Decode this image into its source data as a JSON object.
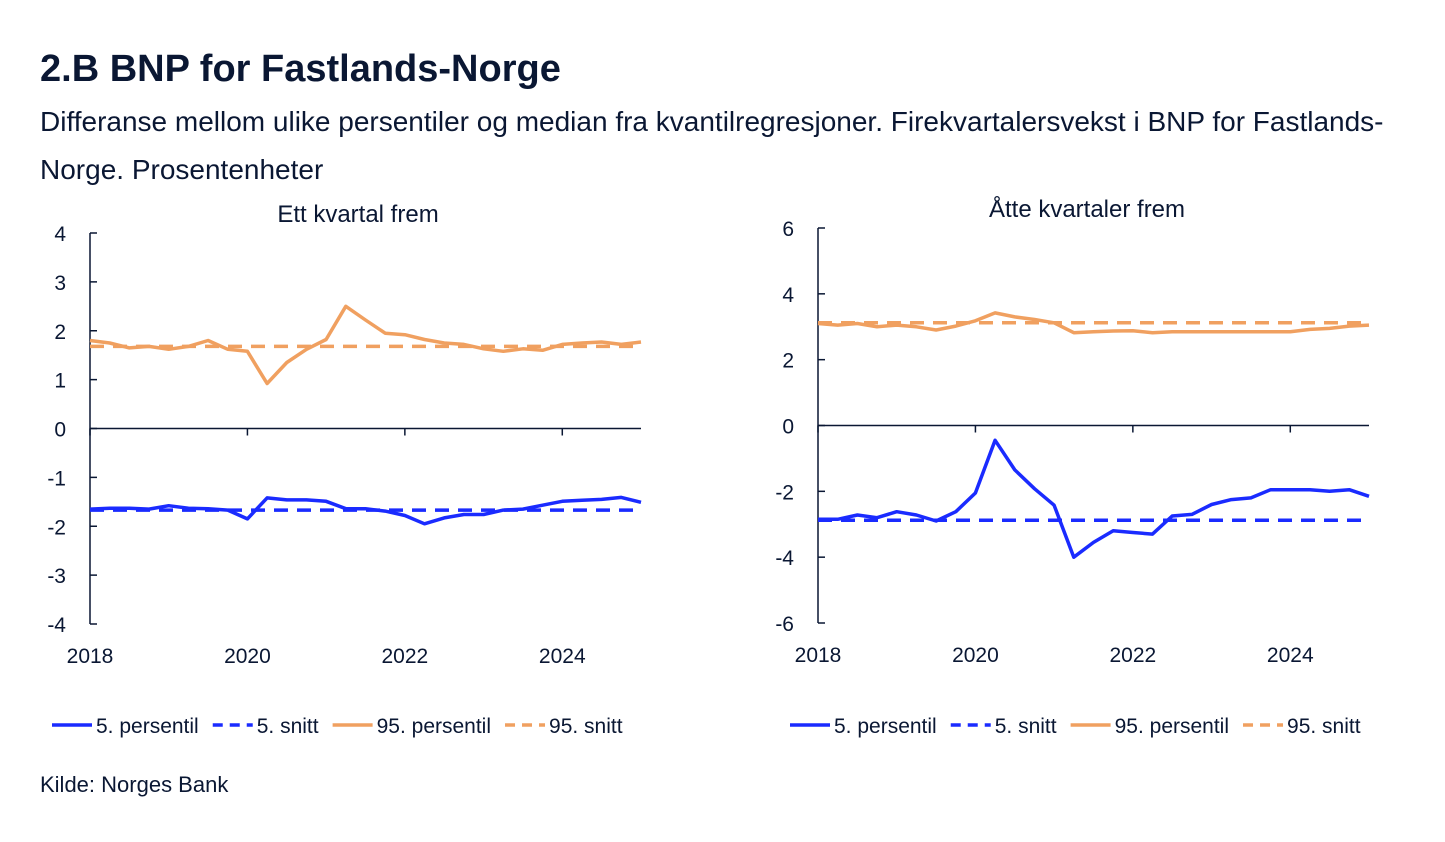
{
  "title": "2.B BNP for Fastlands-Norge",
  "subtitle": "Differanse mellom ulike persentiler og median fra kvantilregresjoner. Firekvartalersvekst i BNP for Fastlands-Norge. Prosentenheter",
  "source": "Kilde: Norges Bank",
  "colors": {
    "blue": "#1a2bff",
    "orange": "#f0a060",
    "axis": "#0a1733"
  },
  "chart_data": [
    {
      "type": "line",
      "title": "Ett kvartal frem",
      "x_start": 2018.0,
      "x_step": 0.25,
      "xlim": [
        2018.0,
        2025.0
      ],
      "xticks": [
        2018,
        2020,
        2022,
        2024
      ],
      "ylim": [
        -4,
        4
      ],
      "yticks": [
        -4,
        -3,
        -2,
        -1,
        0,
        1,
        2,
        3,
        4
      ],
      "series": [
        {
          "name": "5. persentil",
          "style": "solid",
          "color": "blue",
          "values": [
            -1.65,
            -1.63,
            -1.63,
            -1.65,
            -1.58,
            -1.63,
            -1.64,
            -1.67,
            -1.85,
            -1.42,
            -1.46,
            -1.46,
            -1.49,
            -1.64,
            -1.64,
            -1.69,
            -1.78,
            -1.95,
            -1.83,
            -1.76,
            -1.76,
            -1.67,
            -1.65,
            -1.57,
            -1.49,
            -1.47,
            -1.45,
            -1.41,
            -1.51
          ]
        },
        {
          "name": "5. snitt",
          "style": "dashed",
          "color": "blue",
          "values": [
            -1.67,
            -1.67
          ]
        },
        {
          "name": "95. persentil",
          "style": "solid",
          "color": "orange",
          "values": [
            1.8,
            1.75,
            1.65,
            1.68,
            1.62,
            1.68,
            1.8,
            1.62,
            1.58,
            0.92,
            1.35,
            1.62,
            1.82,
            2.5,
            2.22,
            1.95,
            1.92,
            1.82,
            1.75,
            1.72,
            1.63,
            1.58,
            1.63,
            1.6,
            1.72,
            1.75,
            1.77,
            1.72,
            1.77
          ]
        },
        {
          "name": "95. snitt",
          "style": "dashed",
          "color": "orange",
          "values": [
            1.68,
            1.68
          ]
        }
      ],
      "legend": [
        "5. persentil",
        "5. snitt",
        "95. persentil",
        "95. snitt"
      ]
    },
    {
      "type": "line",
      "title": "Åtte kvartaler frem",
      "x_start": 2018.0,
      "x_step": 0.25,
      "xlim": [
        2018.0,
        2025.0
      ],
      "xticks": [
        2018,
        2020,
        2022,
        2024
      ],
      "ylim": [
        -6,
        6
      ],
      "yticks": [
        -6,
        -4,
        -2,
        0,
        2,
        4,
        6
      ],
      "series": [
        {
          "name": "5. persentil",
          "style": "solid",
          "color": "blue",
          "values": [
            -2.85,
            -2.85,
            -2.72,
            -2.8,
            -2.62,
            -2.72,
            -2.9,
            -2.62,
            -2.05,
            -0.45,
            -1.35,
            -1.92,
            -2.42,
            -4.0,
            -3.55,
            -3.2,
            -3.25,
            -3.3,
            -2.75,
            -2.7,
            -2.4,
            -2.25,
            -2.2,
            -1.95,
            -1.95,
            -1.95,
            -2.0,
            -1.95,
            -2.15
          ]
        },
        {
          "name": "5. snitt",
          "style": "dashed",
          "color": "blue",
          "values": [
            -2.88,
            -2.88
          ]
        },
        {
          "name": "95. persentil",
          "style": "solid",
          "color": "orange",
          "values": [
            3.1,
            3.05,
            3.1,
            3.0,
            3.05,
            3.0,
            2.9,
            3.02,
            3.18,
            3.42,
            3.3,
            3.22,
            3.12,
            2.82,
            2.85,
            2.87,
            2.88,
            2.82,
            2.85,
            2.85,
            2.85,
            2.85,
            2.85,
            2.85,
            2.85,
            2.92,
            2.95,
            3.02,
            3.05
          ]
        },
        {
          "name": "95. snitt",
          "style": "dashed",
          "color": "orange",
          "values": [
            3.12,
            3.12
          ]
        }
      ],
      "legend": [
        "5. persentil",
        "5. snitt",
        "95. persentil",
        "95. snitt"
      ]
    }
  ]
}
